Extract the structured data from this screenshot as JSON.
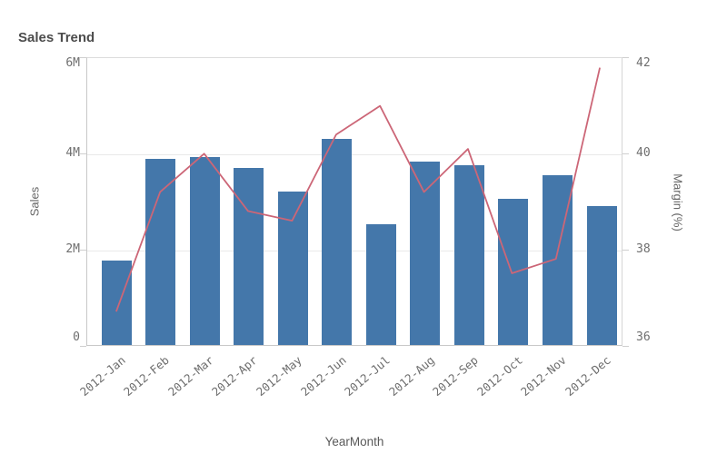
{
  "chart_data": {
    "type": "combo",
    "title": "Sales Trend",
    "xlabel": "YearMonth",
    "categories": [
      "2012-Jan",
      "2012-Feb",
      "2012-Mar",
      "2012-Apr",
      "2012-May",
      "2012-Jun",
      "2012-Jul",
      "2012-Aug",
      "2012-Sep",
      "2012-Oct",
      "2012-Nov",
      "2012-Dec"
    ],
    "series": [
      {
        "name": "Sales",
        "type": "bar",
        "axis": "left",
        "color": "#4477aa",
        "values": [
          1750000,
          3870000,
          3910000,
          3670000,
          3190000,
          4280000,
          2500000,
          3810000,
          3730000,
          3030000,
          3520000,
          2890000
        ]
      },
      {
        "name": "Margin (%)",
        "type": "line",
        "axis": "right",
        "color": "#cc6677",
        "values": [
          36.7,
          39.2,
          40.0,
          38.8,
          38.6,
          40.4,
          41.0,
          39.2,
          40.1,
          37.5,
          37.8,
          41.8
        ]
      }
    ],
    "left_axis": {
      "label": "Sales",
      "range": [
        0,
        6000000
      ],
      "ticks": [
        {
          "value": 0,
          "label": "0"
        },
        {
          "value": 2000000,
          "label": "2M"
        },
        {
          "value": 4000000,
          "label": "4M"
        },
        {
          "value": 6000000,
          "label": "6M"
        }
      ]
    },
    "right_axis": {
      "label": "Margin (%)",
      "range": [
        36,
        42
      ],
      "ticks": [
        {
          "value": 36,
          "label": "36"
        },
        {
          "value": 38,
          "label": "38"
        },
        {
          "value": 40,
          "label": "40"
        },
        {
          "value": 42,
          "label": "42"
        }
      ]
    },
    "grid": "horizontal",
    "legend": "none"
  }
}
